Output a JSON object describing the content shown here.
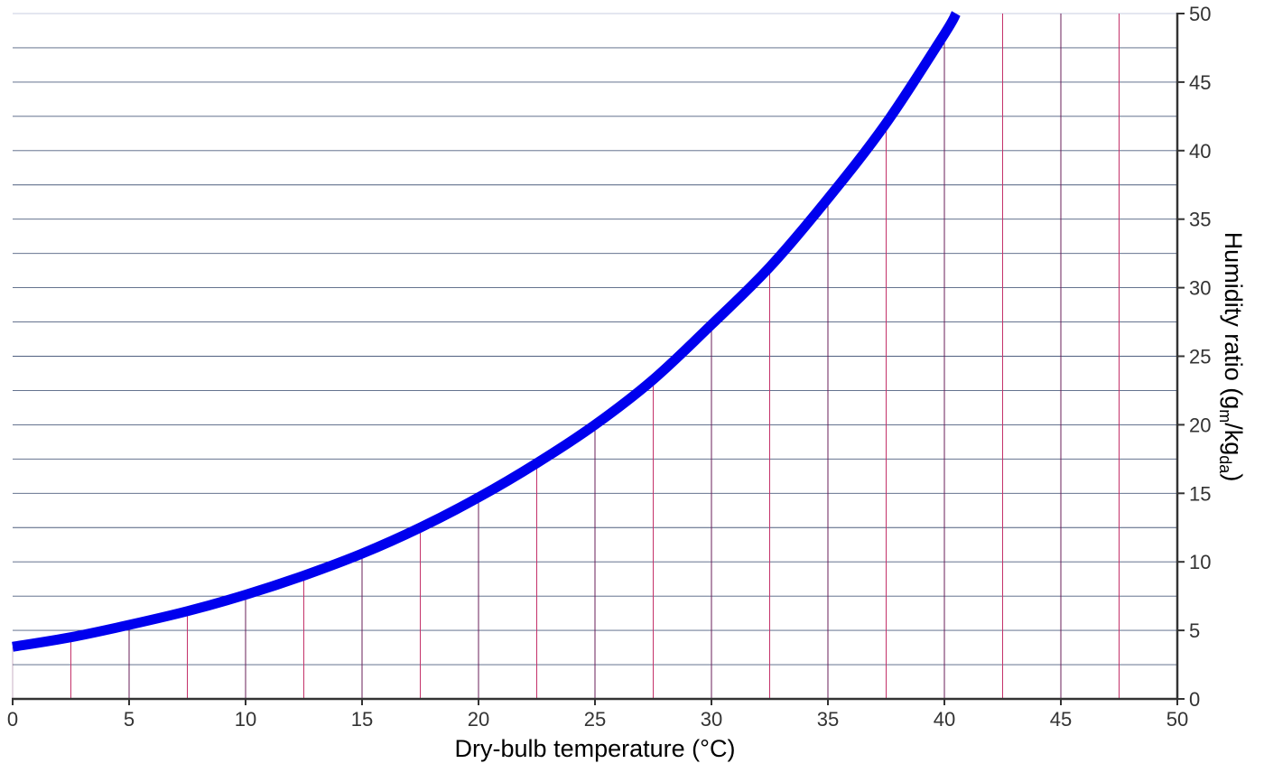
{
  "chart_data": {
    "type": "line",
    "xlabel": "Dry-bulb temperature (°C)",
    "ylabel": {
      "main": "Humidity ratio (g",
      "sub1": "m",
      "mid": "/kg",
      "sub2": "da",
      "end": ")"
    },
    "xlim": [
      0,
      50
    ],
    "ylim": [
      0,
      50
    ],
    "x_ticks": [
      "0",
      "5",
      "10",
      "15",
      "20",
      "25",
      "30",
      "35",
      "40",
      "45",
      "50"
    ],
    "y_ticks": [
      "0",
      "5",
      "10",
      "15",
      "20",
      "25",
      "30",
      "35",
      "40",
      "45",
      "50"
    ],
    "y_axis_position": "right",
    "grid": true,
    "series": [
      {
        "color": "#0000ee",
        "x": [
          0,
          2.5,
          5,
          7.5,
          10,
          12.5,
          15,
          17.5,
          20,
          22.5,
          25,
          27.5,
          30,
          32.5,
          35,
          37.5,
          40,
          40.5
        ],
        "values": [
          3.8,
          4.5,
          5.4,
          6.4,
          7.6,
          9.0,
          10.6,
          12.5,
          14.7,
          17.2,
          20.0,
          23.3,
          27.3,
          31.5,
          36.5,
          42.0,
          48.5,
          50.0
        ]
      }
    ],
    "colors": {
      "vgrid_a": "#c4326a",
      "vgrid_b": "#6a1f5a",
      "hgrid": "#4f5f7f",
      "axis": "#333333"
    }
  }
}
